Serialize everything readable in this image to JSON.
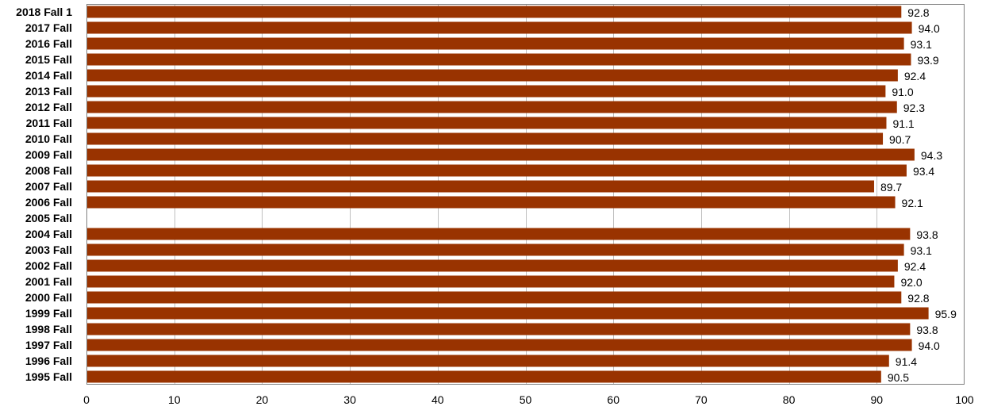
{
  "chart_data": {
    "type": "bar",
    "orientation": "horizontal",
    "categories": [
      "2018 Fall 1",
      "2017 Fall",
      "2016 Fall",
      "2015 Fall",
      "2014 Fall",
      "2013 Fall",
      "2012 Fall",
      "2011 Fall",
      "2010 Fall",
      "2009 Fall",
      "2008 Fall",
      "2007 Fall",
      "2006 Fall",
      "2005 Fall",
      "2004 Fall",
      "2003 Fall",
      "2002 Fall",
      "2001 Fall",
      "2000 Fall",
      "1999 Fall",
      "1998 Fall",
      "1997 Fall",
      "1996 Fall",
      "1995 Fall"
    ],
    "values": [
      92.8,
      94.0,
      93.1,
      93.9,
      92.4,
      91.0,
      92.3,
      91.1,
      90.7,
      94.3,
      93.4,
      89.7,
      92.1,
      null,
      93.8,
      93.1,
      92.4,
      92.0,
      92.8,
      95.9,
      93.8,
      94.0,
      91.4,
      90.5
    ],
    "value_labels": [
      "92.8",
      "94.0",
      "93.1",
      "93.9",
      "92.4",
      "91.0",
      "92.3",
      "91.1",
      "90.7",
      "94.3",
      "93.4",
      "89.7",
      "92.1",
      "",
      "93.8",
      "93.1",
      "92.4",
      "92.0",
      "92.8",
      "95.9",
      "93.8",
      "94.0",
      "91.4",
      "90.5"
    ],
    "xlim": [
      0,
      100
    ],
    "x_ticks": [
      0,
      10,
      20,
      30,
      40,
      50,
      60,
      70,
      80,
      90,
      100
    ],
    "title": "",
    "xlabel": "",
    "ylabel": "",
    "grid": "vertical",
    "legend": "none",
    "colors": {
      "bar": "#993300",
      "grid": "#c0c0c0",
      "axis": "#808080",
      "background": "#ffffff"
    }
  }
}
